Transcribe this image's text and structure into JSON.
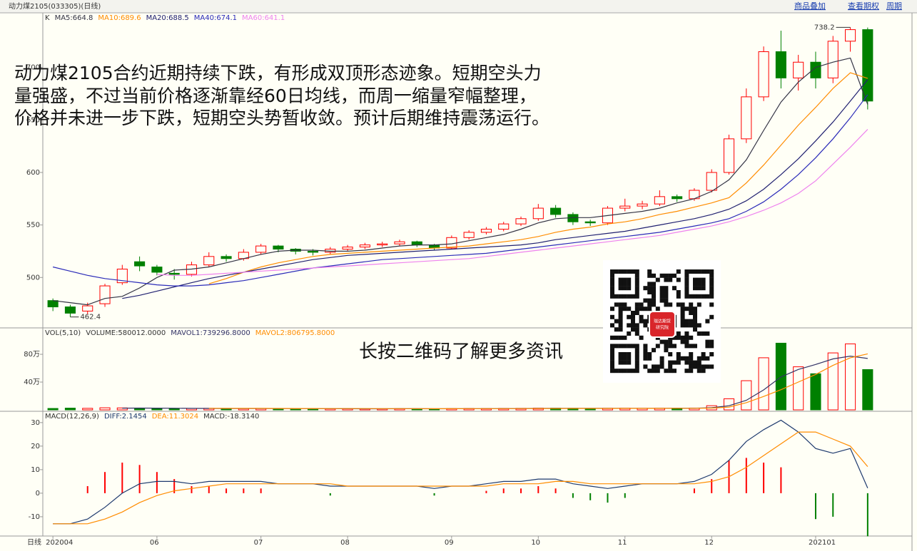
{
  "header": {
    "title": "动力煤2105(033305)(日线)",
    "links": [
      "商品叠加",
      "查看期权",
      "周期"
    ]
  },
  "annotation": {
    "lines": [
      "动力煤2105合约近期持续下跌，有形成双顶形态迹象。短期空头力",
      "量强盛，不过当前价格逐渐靠经60日均线，而周一缩量窄幅整理，",
      "价格并未进一步下跌，短期空头势暂收敛。预计后期维持震荡运行。"
    ],
    "qr_caption": "长按二维码了解更多资讯",
    "qr_logo": [
      "瑞达期货",
      "研究院"
    ]
  },
  "x_axis": {
    "label": "日线"
  },
  "chart_data": [
    {
      "type": "candlestick",
      "name": "K",
      "up_color": "#ff0000",
      "down_color": "#008000",
      "categories": [
        "202004",
        null,
        null,
        null,
        null,
        null,
        "06",
        null,
        null,
        null,
        null,
        null,
        "07",
        null,
        null,
        null,
        null,
        "08",
        null,
        null,
        null,
        null,
        null,
        "09",
        null,
        null,
        null,
        null,
        "10",
        null,
        null,
        null,
        null,
        "11",
        null,
        null,
        null,
        null,
        "12",
        null,
        null,
        null,
        null,
        null,
        "202101",
        null,
        null,
        null
      ],
      "open": [
        478,
        472,
        468,
        475,
        495,
        515,
        510,
        504,
        503,
        512,
        520,
        518,
        524,
        530,
        527,
        525,
        524,
        527,
        529,
        531,
        532,
        534,
        531,
        528,
        538,
        543,
        546,
        551,
        556,
        566,
        560,
        553,
        552,
        566,
        568,
        570,
        577,
        575,
        583,
        600,
        632,
        672,
        715,
        690,
        705,
        690,
        725,
        736
      ],
      "close": [
        472,
        466,
        473,
        492,
        508,
        511,
        505,
        503,
        512,
        520,
        518,
        524,
        530,
        527,
        525,
        524,
        527,
        529,
        531,
        532,
        534,
        531,
        528,
        538,
        543,
        546,
        551,
        556,
        566,
        560,
        553,
        552,
        566,
        568,
        570,
        577,
        575,
        583,
        600,
        632,
        672,
        715,
        690,
        705,
        690,
        725,
        736,
        668
      ],
      "high": [
        480,
        474,
        476,
        494,
        512,
        520,
        512,
        508,
        515,
        524,
        522,
        527,
        532,
        531,
        528,
        527,
        529,
        531,
        533,
        534,
        536,
        535,
        532,
        540,
        545,
        548,
        553,
        558,
        570,
        569,
        562,
        555,
        568,
        575,
        573,
        583,
        579,
        585,
        603,
        636,
        680,
        720,
        735,
        712,
        715,
        730,
        738.2,
        738
      ],
      "low": [
        468,
        462.4,
        465,
        472,
        493,
        506,
        502,
        498,
        501,
        510,
        515,
        516,
        522,
        524,
        522,
        521,
        522,
        525,
        527,
        529,
        530,
        529,
        526,
        527,
        536,
        541,
        544,
        549,
        554,
        557,
        550,
        549,
        550,
        563,
        565,
        568,
        572,
        573,
        581,
        598,
        628,
        668,
        680,
        678,
        680,
        685,
        715,
        660
      ],
      "series": [
        {
          "name": "MA5:664.8",
          "color": "#333344",
          "values": [
            478,
            476,
            474,
            480,
            482,
            490,
            500,
            507,
            508,
            510,
            514,
            518,
            522,
            525,
            526,
            526,
            525,
            525,
            526,
            528,
            530,
            531,
            531,
            532,
            535,
            538,
            541,
            546,
            552,
            556,
            557,
            557,
            559,
            561,
            563,
            566,
            571,
            575,
            582,
            593,
            612,
            640,
            667,
            686,
            700,
            705,
            709,
            664.8
          ]
        },
        {
          "name": "MA10:689.6",
          "color": "#ff8c00",
          "values": [
            null,
            null,
            null,
            null,
            null,
            null,
            null,
            null,
            null,
            494,
            499,
            505,
            510,
            514,
            517,
            520,
            522,
            523,
            524,
            525,
            526,
            527,
            528,
            529,
            530,
            532,
            534,
            536,
            539,
            543,
            546,
            548,
            551,
            553,
            556,
            560,
            563,
            567,
            571,
            576,
            590,
            607,
            626,
            645,
            662,
            680,
            695,
            689.6
          ]
        },
        {
          "name": "MA20:688.5",
          "color": "#202070",
          "values": [
            null,
            null,
            null,
            null,
            480,
            483,
            487,
            491,
            495,
            499,
            502,
            505,
            508,
            511,
            514,
            517,
            519,
            521,
            522,
            523,
            524,
            525,
            526,
            527,
            528,
            529,
            530,
            531,
            533,
            536,
            538,
            540,
            542,
            544,
            547,
            550,
            553,
            556,
            560,
            565,
            573,
            584,
            598,
            613,
            630,
            648,
            668,
            688.5
          ]
        },
        {
          "name": "MA40:674.1",
          "color": "#2a2ab8",
          "values": [
            510,
            506,
            502,
            499,
            497,
            495,
            493,
            492,
            492,
            493,
            495,
            497,
            500,
            503,
            506,
            509,
            511,
            513,
            515,
            517,
            518,
            519,
            520,
            521,
            522,
            523,
            525,
            527,
            529,
            531,
            533,
            535,
            537,
            539,
            541,
            543,
            546,
            549,
            552,
            556,
            563,
            572,
            584,
            598,
            614,
            632,
            652,
            674.1
          ]
        },
        {
          "name": "MA60:641.1",
          "color": "#ee82ee",
          "values": [
            null,
            null,
            null,
            null,
            null,
            null,
            503,
            502,
            502,
            503,
            504,
            505,
            506,
            507,
            508,
            509,
            510,
            511,
            512,
            513,
            514,
            515,
            516,
            517,
            518,
            520,
            522,
            524,
            526,
            528,
            530,
            532,
            534,
            536,
            538,
            540,
            543,
            546,
            549,
            553,
            558,
            564,
            571,
            580,
            592,
            608,
            624,
            641.1
          ]
        }
      ],
      "ylim": [
        452,
        752
      ],
      "yticks": [
        500,
        550,
        600,
        650,
        700
      ]
    },
    {
      "type": "bar",
      "name": "VOL(5,10)",
      "value_label": "VOLUME:580012.0000",
      "values": [
        20000,
        25000,
        22000,
        30000,
        28000,
        22000,
        20000,
        18000,
        20000,
        22000,
        18000,
        19000,
        21000,
        17000,
        16000,
        15000,
        16000,
        17000,
        15000,
        16000,
        17000,
        16000,
        15000,
        18000,
        20000,
        19000,
        21000,
        22000,
        25000,
        24000,
        22000,
        20000,
        23000,
        25000,
        22000,
        24000,
        22000,
        26000,
        60000,
        160000,
        420000,
        750000,
        960000,
        620000,
        520000,
        820000,
        950000,
        580012
      ],
      "series": [
        {
          "name": "MAVOL1:739296.8000",
          "color": "#333366",
          "values": [
            null,
            null,
            null,
            null,
            25000,
            25400,
            24400,
            23600,
            21600,
            20400,
            19600,
            19400,
            19800,
            19400,
            18200,
            17600,
            17400,
            16200,
            15800,
            15800,
            16200,
            16200,
            15800,
            16400,
            17200,
            17600,
            18600,
            20000,
            21400,
            22200,
            22800,
            23000,
            22800,
            22800,
            22400,
            22800,
            23200,
            23800,
            30800,
            59600,
            138000,
            287200,
            474000,
            582000,
            654000,
            734000,
            774000,
            739296.8
          ]
        },
        {
          "name": "MAVOL2:806795.8000",
          "color": "#ff8c00",
          "values": [
            null,
            null,
            null,
            null,
            null,
            null,
            null,
            null,
            null,
            22700,
            22000,
            21900,
            21400,
            20600,
            19800,
            19000,
            18500,
            18000,
            18000,
            17800,
            17700,
            17300,
            16900,
            16900,
            17300,
            17400,
            17900,
            18300,
            19000,
            19700,
            20300,
            20400,
            20700,
            21300,
            21700,
            21800,
            22200,
            22800,
            26100,
            39700,
            104000,
            193000,
            290000,
            400000,
            510000,
            640000,
            750000,
            806795.8
          ]
        }
      ],
      "ylim": [
        0,
        1180000
      ],
      "yticks": [
        {
          "value": 400000,
          "label": "40万"
        },
        {
          "value": 800000,
          "label": "80万"
        }
      ]
    },
    {
      "type": "macd",
      "name": "MACD(12,26,9)",
      "hist_name": "MACD:-18.3140",
      "up_color": "#ff0000",
      "down_color": "#008000",
      "values": [
        0,
        0,
        3,
        9,
        13,
        12,
        9,
        6,
        3,
        3,
        2,
        2,
        2,
        0,
        0,
        0,
        -1,
        0,
        0,
        0,
        0,
        0,
        -1,
        0,
        0,
        1,
        2,
        2,
        3,
        2,
        -2,
        -3,
        -4,
        -2,
        0,
        0,
        0,
        2,
        6,
        14,
        15,
        13,
        11,
        0,
        -11,
        -10,
        0,
        -18.314
      ],
      "series": [
        {
          "name": "DIFF:2.1454",
          "color": "#1e3a6e",
          "values": [
            -13,
            -13,
            -11,
            -6,
            0,
            4,
            5,
            5,
            4,
            5,
            5,
            5,
            5,
            4,
            4,
            4,
            3,
            3,
            3,
            3,
            3,
            3,
            2,
            3,
            3,
            4,
            5,
            5,
            6,
            6,
            4,
            3,
            2,
            3,
            4,
            4,
            4,
            5,
            8,
            14,
            22,
            27,
            31,
            26,
            19,
            17,
            19,
            2.1454
          ]
        },
        {
          "name": "DEA:11.3024",
          "color": "#ff8c00",
          "values": [
            -13,
            -13,
            -13,
            -11,
            -8,
            -4,
            -1,
            1,
            2,
            3,
            4,
            4,
            4,
            4,
            4,
            4,
            4,
            3,
            3,
            3,
            3,
            3,
            3,
            3,
            3,
            3,
            4,
            4,
            4,
            5,
            5,
            4,
            4,
            4,
            4,
            4,
            4,
            4,
            5,
            7,
            11,
            16,
            21,
            26,
            26,
            23,
            20,
            11.3024
          ]
        }
      ],
      "ylim": [
        -18.2,
        34.8
      ],
      "yticks": [
        -10,
        0,
        10,
        20,
        30
      ]
    }
  ]
}
